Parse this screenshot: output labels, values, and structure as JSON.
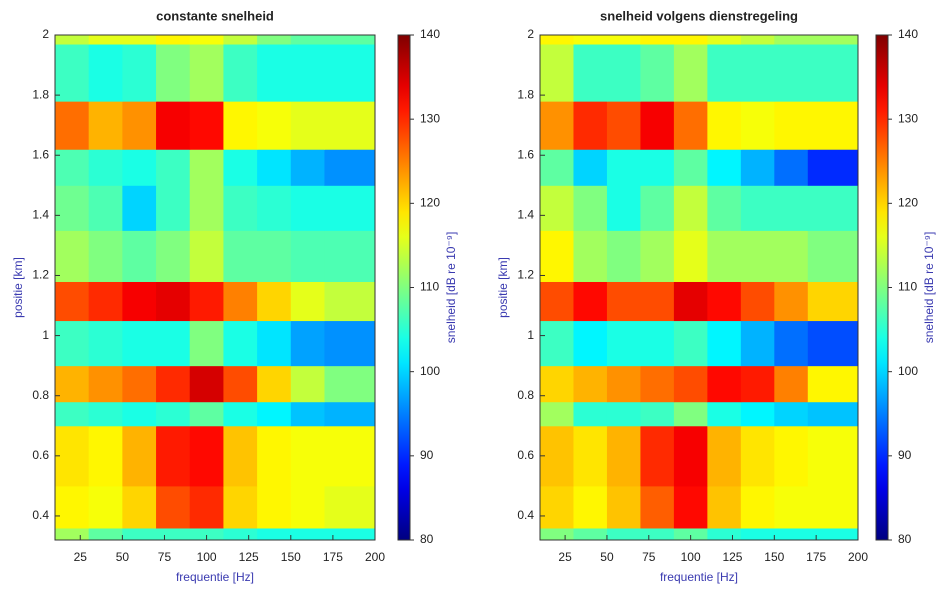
{
  "chart_data": [
    {
      "type": "heatmap",
      "title": "constante snelheid",
      "xlabel": "frequentie [Hz]",
      "ylabel": "positie [km]",
      "zlabel": "snelheid [dB re 10⁻⁹]",
      "xlim": [
        10,
        200
      ],
      "xticks": [
        25,
        50,
        75,
        100,
        125,
        150,
        175,
        200
      ],
      "ylim": [
        0.32,
        2
      ],
      "yticks": [
        0.4,
        0.6,
        0.8,
        1,
        1.2,
        1.4,
        1.6,
        1.8,
        2
      ],
      "zlim": [
        80,
        140
      ],
      "zticks": [
        80,
        90,
        100,
        110,
        120,
        130,
        140
      ],
      "colormap": "jet",
      "x_bins": [
        10,
        30,
        50,
        70,
        90,
        110,
        130,
        150,
        170,
        200
      ],
      "y_bins": [
        0.32,
        0.36,
        0.5,
        0.7,
        0.78,
        0.9,
        1.05,
        1.18,
        1.35,
        1.5,
        1.62,
        1.78,
        1.97,
        2
      ],
      "z": [
        [
          112,
          108,
          106,
          106,
          106,
          105,
          104,
          104,
          104
        ],
        [
          118,
          117,
          120,
          128,
          130,
          120,
          118,
          117,
          116
        ],
        [
          119,
          118,
          122,
          131,
          132,
          121,
          118,
          117,
          117
        ],
        [
          106,
          105,
          104,
          105,
          108,
          104,
          102,
          99,
          98
        ],
        [
          122,
          124,
          126,
          130,
          135,
          128,
          120,
          114,
          110
        ],
        [
          106,
          105,
          104,
          104,
          110,
          104,
          101,
          97,
          96
        ],
        [
          128,
          130,
          133,
          134,
          131,
          125,
          120,
          116,
          114
        ],
        [
          112,
          110,
          108,
          110,
          114,
          108,
          108,
          107,
          107
        ],
        [
          109,
          107,
          100,
          106,
          112,
          106,
          105,
          104,
          104
        ],
        [
          107,
          105,
          104,
          106,
          112,
          104,
          101,
          98,
          96
        ],
        [
          126,
          122,
          124,
          133,
          132,
          118,
          117,
          116,
          116
        ],
        [
          106,
          104,
          105,
          110,
          112,
          106,
          104,
          104,
          104
        ],
        [
          114,
          116,
          116,
          118,
          117,
          114,
          110,
          108,
          108
        ]
      ]
    },
    {
      "type": "heatmap",
      "title": "snelheid volgens dienstregeling",
      "xlabel": "frequentie [Hz]",
      "ylabel": "positie [km]",
      "zlabel": "snelheid [dB re 10⁻⁹]",
      "xlim": [
        10,
        200
      ],
      "xticks": [
        25,
        50,
        75,
        100,
        125,
        150,
        175,
        200
      ],
      "ylim": [
        0.32,
        2
      ],
      "yticks": [
        0.4,
        0.6,
        0.8,
        1,
        1.2,
        1.4,
        1.6,
        1.8,
        2
      ],
      "zlim": [
        80,
        140
      ],
      "zticks": [
        80,
        90,
        100,
        110,
        120,
        130,
        140
      ],
      "colormap": "jet",
      "x_bins": [
        10,
        30,
        50,
        70,
        90,
        110,
        130,
        150,
        170,
        200
      ],
      "y_bins": [
        0.32,
        0.36,
        0.5,
        0.7,
        0.78,
        0.9,
        1.05,
        1.18,
        1.35,
        1.5,
        1.62,
        1.78,
        1.97,
        2
      ],
      "z": [
        [
          110,
          108,
          106,
          106,
          108,
          105,
          104,
          104,
          104
        ],
        [
          120,
          118,
          121,
          127,
          132,
          121,
          118,
          117,
          117
        ],
        [
          121,
          119,
          122,
          130,
          133,
          122,
          119,
          118,
          117
        ],
        [
          112,
          105,
          105,
          106,
          110,
          104,
          102,
          100,
          99
        ],
        [
          120,
          122,
          124,
          126,
          128,
          132,
          131,
          125,
          118
        ],
        [
          106,
          102,
          104,
          104,
          106,
          102,
          98,
          94,
          92
        ],
        [
          128,
          132,
          128,
          128,
          134,
          132,
          128,
          124,
          120
        ],
        [
          118,
          112,
          110,
          112,
          116,
          112,
          112,
          112,
          110
        ],
        [
          114,
          110,
          104,
          108,
          114,
          108,
          106,
          106,
          106
        ],
        [
          108,
          100,
          104,
          104,
          108,
          102,
          98,
          94,
          90
        ],
        [
          124,
          130,
          128,
          133,
          126,
          118,
          117,
          118,
          118
        ],
        [
          114,
          106,
          106,
          108,
          112,
          106,
          106,
          106,
          106
        ],
        [
          118,
          117,
          117,
          118,
          118,
          116,
          114,
          112,
          112
        ]
      ]
    }
  ]
}
